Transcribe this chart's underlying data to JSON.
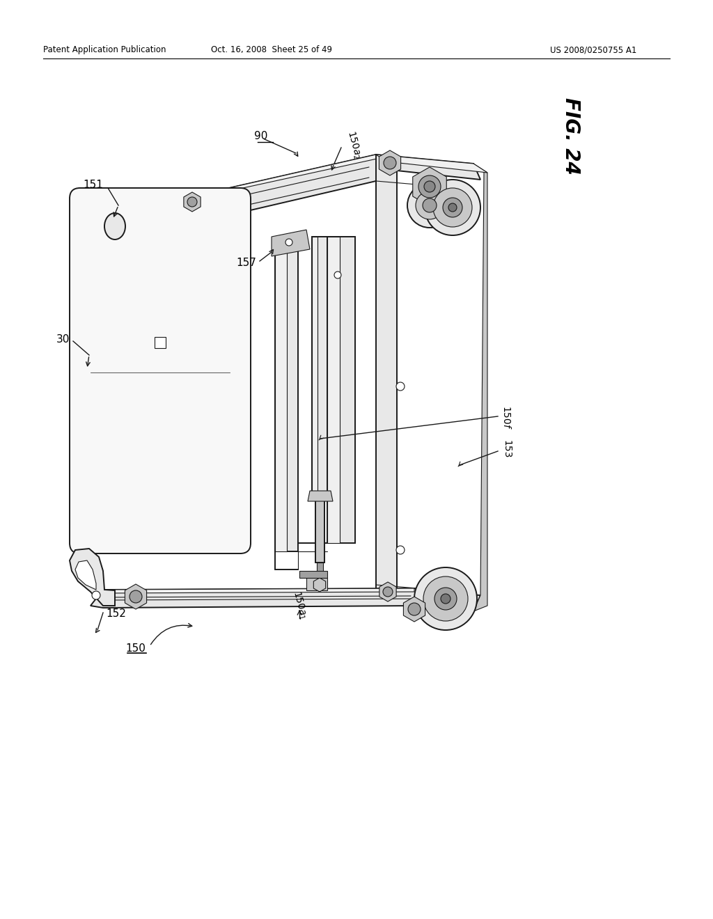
{
  "background_color": "#ffffff",
  "header_left": "Patent Application Publication",
  "header_center": "Oct. 16, 2008  Sheet 25 of 49",
  "header_right": "US 2008/0250755 A1",
  "fig_label": "FIG. 24",
  "line_color": "#1a1a1a",
  "lw_main": 1.4,
  "lw_thick": 2.2,
  "lw_thin": 0.8,
  "gray_light": "#e8e8e8",
  "gray_mid": "#c8c8c8",
  "gray_dark": "#a0a0a0",
  "white": "#ffffff"
}
